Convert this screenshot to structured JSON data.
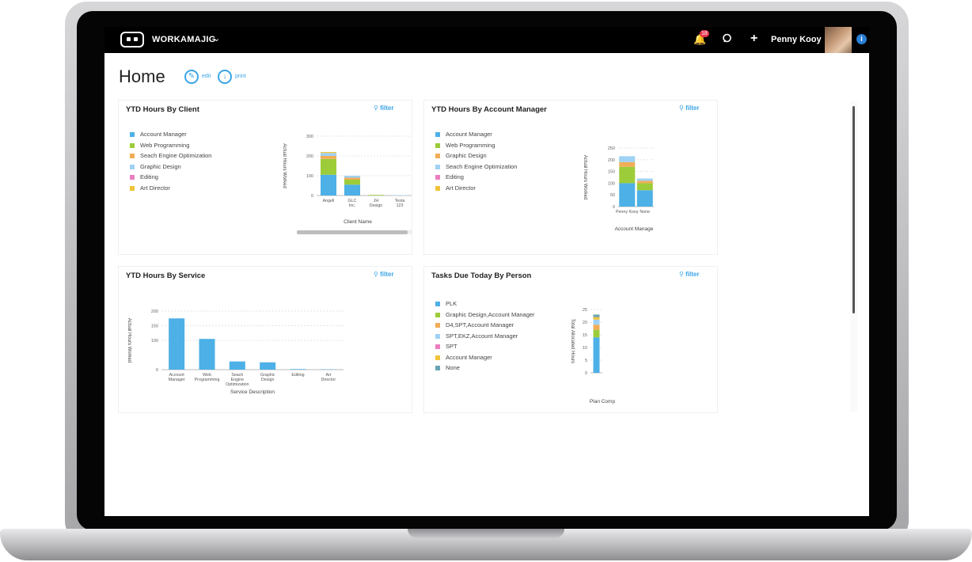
{
  "app": {
    "name": "WORKAMAJIG",
    "user": "Penny Kooy",
    "notification_count": "18"
  },
  "page": {
    "title": "Home",
    "edit_label": "edit",
    "print_label": "print"
  },
  "colors": {
    "blue": "#4db0e6",
    "green": "#9dcc3a",
    "orange": "#f2ad57",
    "light_blue": "#9fd2f4",
    "pink": "#ec7ec0",
    "yellow": "#f0c43a",
    "teal": "#6aa3b3",
    "accent": "#3aa4e6"
  },
  "panels": [
    {
      "id": "hours_by_client",
      "title": "YTD Hours By Client",
      "filter_label": "filter",
      "legend": [
        {
          "label": "Account Manager",
          "color": "#4db0e6"
        },
        {
          "label": "Web Programming",
          "color": "#9dcc3a"
        },
        {
          "label": "Seach Engine Optimization",
          "color": "#f2ad57"
        },
        {
          "label": "Graphic Design",
          "color": "#9fd2f4"
        },
        {
          "label": "Editing",
          "color": "#ec7ec0"
        },
        {
          "label": "Art Director",
          "color": "#f0c43a"
        }
      ]
    },
    {
      "id": "hours_by_account_manager",
      "title": "YTD Hours By Account Manager",
      "filter_label": "filter",
      "legend": [
        {
          "label": "Account Manager",
          "color": "#4db0e6"
        },
        {
          "label": "Web Programming",
          "color": "#9dcc3a"
        },
        {
          "label": "Graphic Design",
          "color": "#f2ad57"
        },
        {
          "label": "Seach Engine Optimization",
          "color": "#9fd2f4"
        },
        {
          "label": "Editing",
          "color": "#ec7ec0"
        },
        {
          "label": "Art Director",
          "color": "#f0c43a"
        }
      ]
    },
    {
      "id": "hours_by_service",
      "title": "YTD Hours By Service",
      "filter_label": "filter"
    },
    {
      "id": "tasks_due_today",
      "title": "Tasks Due Today By Person",
      "filter_label": "filter",
      "legend": [
        {
          "label": "PLK",
          "color": "#4db0e6"
        },
        {
          "label": "Graphic Design,Account Manager",
          "color": "#9dcc3a"
        },
        {
          "label": "D4,SPT,Account Manager",
          "color": "#f2ad57"
        },
        {
          "label": "SPT,EKZ,Account Manager",
          "color": "#9fd2f4"
        },
        {
          "label": "SPT",
          "color": "#ec7ec0"
        },
        {
          "label": "Account Manager",
          "color": "#f0c43a"
        },
        {
          "label": "None",
          "color": "#6aa3b3"
        }
      ]
    }
  ],
  "chart_data": [
    {
      "type": "bar",
      "stacked": true,
      "xlabel": "Client Name",
      "ylabel": "Actual Hours Worked",
      "ylim": [
        0,
        300
      ],
      "yticks": [
        0,
        100,
        200,
        300
      ],
      "categories": [
        "Angell",
        "GLC Inc.",
        "JH Design",
        "Testa 123"
      ],
      "series": [
        {
          "name": "Account Manager",
          "values": [
            105,
            55,
            0,
            0
          ]
        },
        {
          "name": "Web Programming",
          "values": [
            80,
            25,
            3,
            0
          ]
        },
        {
          "name": "Seach Engine Optimization",
          "values": [
            15,
            10,
            0,
            0
          ]
        },
        {
          "name": "Graphic Design",
          "values": [
            15,
            10,
            0,
            2
          ]
        },
        {
          "name": "Editing",
          "values": [
            0,
            0,
            0,
            0
          ]
        },
        {
          "name": "Art Director",
          "values": [
            5,
            0,
            0,
            0
          ]
        }
      ]
    },
    {
      "type": "bar",
      "stacked": true,
      "xlabel": "Account Manage",
      "ylabel": "Actual Hours Worked",
      "ylim": [
        0,
        250
      ],
      "yticks": [
        0,
        50,
        100,
        150,
        200,
        250
      ],
      "categories": [
        "Penny Kooy",
        "None"
      ],
      "series": [
        {
          "name": "Account Manager",
          "values": [
            100,
            70
          ]
        },
        {
          "name": "Web Programming",
          "values": [
            70,
            30
          ]
        },
        {
          "name": "Graphic Design",
          "values": [
            20,
            10
          ]
        },
        {
          "name": "Seach Engine Optimization",
          "values": [
            25,
            10
          ]
        },
        {
          "name": "Editing",
          "values": [
            0,
            0
          ]
        },
        {
          "name": "Art Director",
          "values": [
            0,
            0
          ]
        }
      ]
    },
    {
      "type": "bar",
      "xlabel": "Service Description",
      "ylabel": "Actual Hours Worked",
      "ylim": [
        0,
        200
      ],
      "yticks": [
        0,
        100,
        150,
        200
      ],
      "categories": [
        "Account Manager",
        "Web Programming",
        "Seach Engine Optimization",
        "Graphic Design",
        "Editing",
        "Art Director"
      ],
      "values": [
        175,
        105,
        28,
        25,
        2,
        1
      ]
    },
    {
      "type": "bar",
      "stacked": true,
      "xlabel": "Plan Comp",
      "ylabel": "Total Allocated Hours",
      "ylim": [
        0,
        25
      ],
      "yticks": [
        0,
        5,
        10,
        15,
        20,
        25
      ],
      "categories": [
        ""
      ],
      "series": [
        {
          "name": "PLK",
          "values": [
            14
          ]
        },
        {
          "name": "Graphic Design,Account Manager",
          "values": [
            3
          ]
        },
        {
          "name": "D4,SPT,Account Manager",
          "values": [
            2
          ]
        },
        {
          "name": "SPT,EKZ,Account Manager",
          "values": [
            2
          ]
        },
        {
          "name": "SPT",
          "values": [
            0
          ]
        },
        {
          "name": "Account Manager",
          "values": [
            1
          ]
        },
        {
          "name": "None",
          "values": [
            1
          ]
        }
      ]
    }
  ]
}
